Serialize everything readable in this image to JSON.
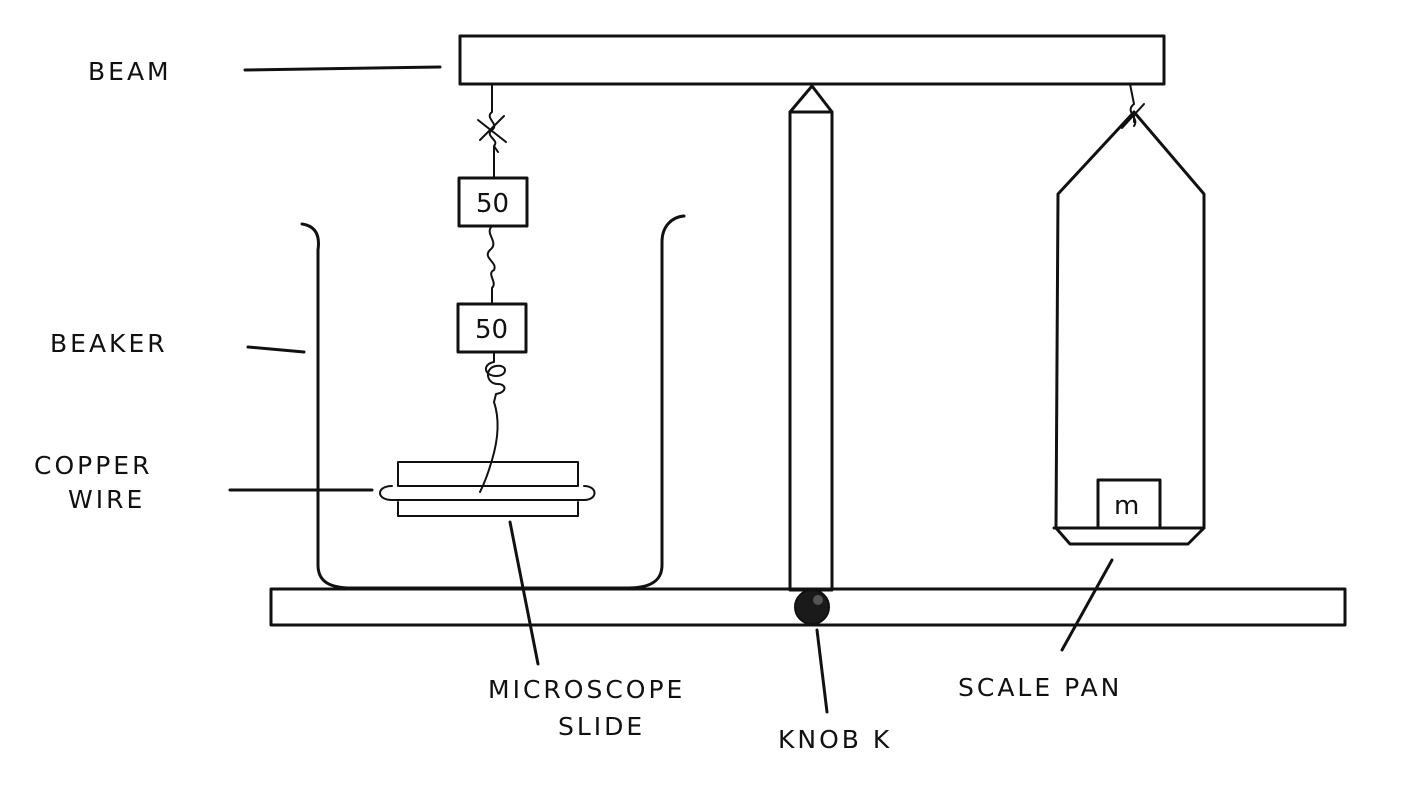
{
  "labels": {
    "beam": "BEAM",
    "beaker": "BEAKER",
    "copper_wire_line1": "COPPER",
    "copper_wire_line2": "WIRE",
    "microscope_slide_line1": "MICROSCOPE",
    "microscope_slide_line2": "SLIDE",
    "knob": "KNOB K",
    "scale_pan": "SCALE PAN"
  },
  "weights": {
    "upper": "50",
    "lower": "50",
    "pan_mass": "m"
  }
}
